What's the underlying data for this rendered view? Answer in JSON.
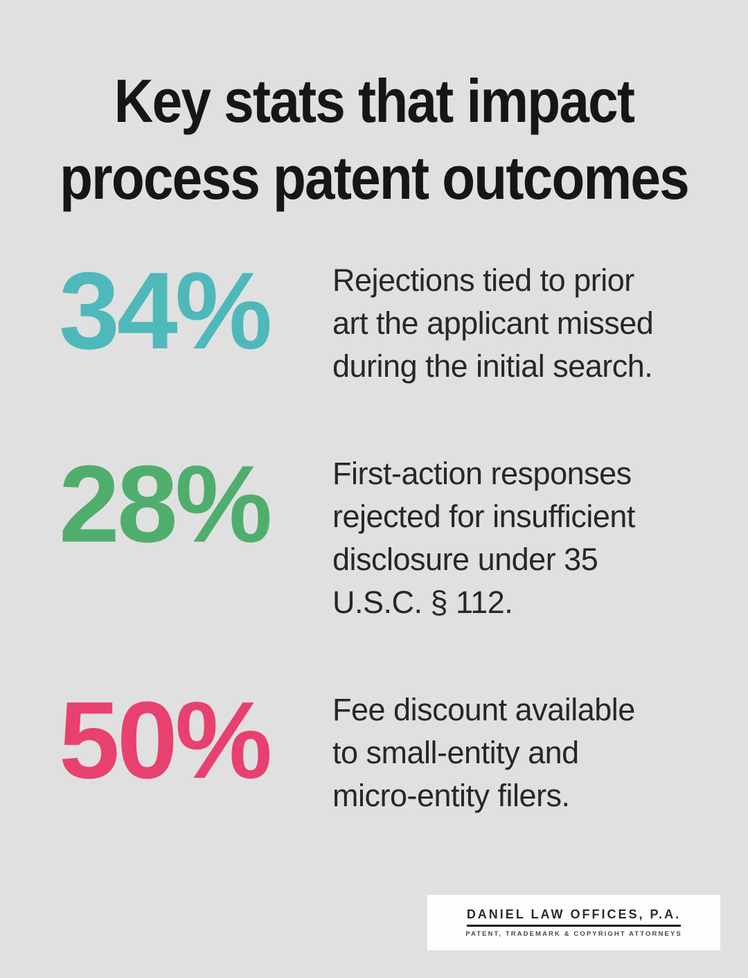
{
  "title": "Key stats that impact\nprocess patent outcomes",
  "colors": {
    "background": "#e0e0e0",
    "title_text": "#161616",
    "description_text": "#272727",
    "teal": "#4fb8ba",
    "green": "#4fae6d",
    "pink": "#e8416f",
    "logo_background": "#fefefe"
  },
  "stats": [
    {
      "value": "34%",
      "color": "#4fb8ba",
      "description": "Rejections tied to prior\nart the applicant missed\nduring the initial search."
    },
    {
      "value": "28%",
      "color": "#4fae6d",
      "description": "First-action responses\nrejected for insufficient\ndisclosure under 35\nU.S.C. § 112."
    },
    {
      "value": "50%",
      "color": "#e8416f",
      "description": "Fee discount available\nto small-entity and\nmicro-entity filers."
    }
  ],
  "logo": {
    "name": "DANIEL LAW OFFICES, P.A.",
    "tagline": "PATENT, TRADEMARK & COPYRIGHT ATTORNEYS"
  },
  "chart_data": {
    "type": "table",
    "title": "Key stats that impact process patent outcomes",
    "categories": [
      "Rejections tied to prior art the applicant missed during the initial search.",
      "First-action responses rejected for insufficient disclosure under 35 U.S.C. § 112.",
      "Fee discount available to small-entity and micro-entity filers."
    ],
    "values": [
      34,
      28,
      50
    ],
    "unit": "%",
    "legend_position": "none",
    "grid": false
  }
}
